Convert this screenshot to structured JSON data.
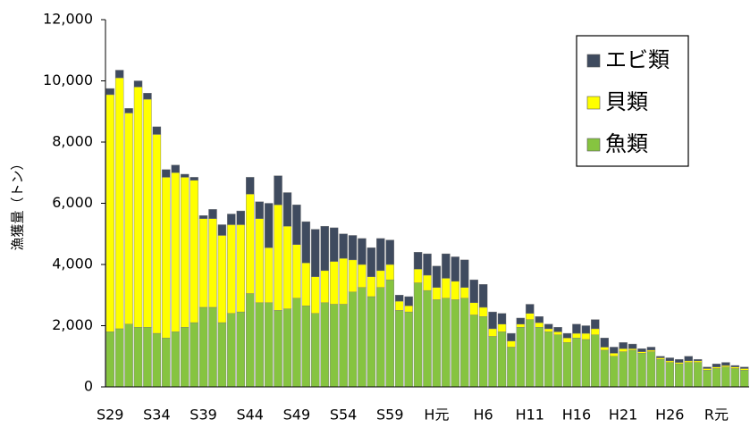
{
  "chart_data": {
    "type": "stacked-bar",
    "y_label": "漁獲量（トン）",
    "categories": [
      "S29",
      null,
      null,
      null,
      null,
      "S34",
      null,
      null,
      null,
      null,
      "S39",
      null,
      null,
      null,
      null,
      "S44",
      null,
      null,
      null,
      null,
      "S49",
      null,
      null,
      null,
      null,
      "S54",
      null,
      null,
      null,
      null,
      "S59",
      null,
      null,
      null,
      null,
      "H元",
      null,
      null,
      null,
      null,
      "H6",
      null,
      null,
      null,
      null,
      "H11",
      null,
      null,
      null,
      null,
      "H16",
      null,
      null,
      null,
      null,
      "H21",
      null,
      null,
      null,
      null,
      "H26",
      null,
      null,
      null,
      null,
      "R元",
      null,
      null,
      null
    ],
    "series": [
      {
        "name": "魚類",
        "color": "#86c440",
        "values": [
          1800,
          1900,
          2050,
          1950,
          1950,
          1750,
          1600,
          1800,
          1950,
          2100,
          2600,
          2600,
          2100,
          2400,
          2450,
          3050,
          2750,
          2750,
          2500,
          2550,
          2900,
          2650,
          2400,
          2750,
          2700,
          2700,
          3100,
          3250,
          2950,
          3250,
          3500,
          2500,
          2450,
          3400,
          3150,
          2850,
          2900,
          2850,
          2900,
          2350,
          2300,
          1650,
          1800,
          1300,
          1950,
          2200,
          1950,
          1800,
          1700,
          1450,
          1600,
          1550,
          1700,
          1200,
          1000,
          1150,
          1200,
          1100,
          1150,
          900,
          800,
          750,
          800,
          800,
          550,
          600,
          650,
          600,
          550
        ]
      },
      {
        "name": "貝類",
        "color": "#ffff00",
        "values": [
          7750,
          8200,
          6900,
          7850,
          7450,
          6500,
          5250,
          5200,
          4900,
          4650,
          2900,
          2900,
          2850,
          2900,
          2850,
          3250,
          2750,
          1800,
          3450,
          2700,
          1750,
          1400,
          1200,
          1050,
          1400,
          1500,
          1050,
          750,
          650,
          550,
          500,
          300,
          200,
          450,
          500,
          400,
          650,
          600,
          350,
          400,
          300,
          250,
          250,
          200,
          100,
          200,
          150,
          100,
          100,
          150,
          150,
          200,
          200,
          100,
          100,
          100,
          50,
          50,
          50,
          50,
          50,
          50,
          50,
          50,
          50,
          50,
          50,
          50,
          50
        ]
      },
      {
        "name": "エビ類",
        "color": "#3f4b5f",
        "values": [
          200,
          250,
          150,
          200,
          200,
          250,
          250,
          250,
          100,
          100,
          100,
          300,
          350,
          350,
          450,
          550,
          550,
          1450,
          950,
          1100,
          1300,
          1350,
          1550,
          1450,
          1100,
          800,
          800,
          850,
          950,
          1050,
          800,
          200,
          300,
          550,
          700,
          700,
          800,
          800,
          900,
          750,
          750,
          550,
          350,
          250,
          200,
          300,
          200,
          150,
          150,
          150,
          300,
          250,
          300,
          300,
          200,
          200,
          150,
          100,
          100,
          50,
          100,
          100,
          150,
          50,
          50,
          100,
          100,
          50,
          50
        ]
      }
    ],
    "ylim": [
      0,
      12000
    ],
    "yticks": [
      0,
      {
        "value": 2000,
        "label": "2,000"
      },
      {
        "value": 4000,
        "label": "4,000"
      },
      {
        "value": 6000,
        "label": "6,000"
      },
      {
        "value": 8000,
        "label": "8,000"
      },
      {
        "value": 10000,
        "label": "10,000"
      },
      {
        "value": 12000,
        "label": "12,000"
      }
    ],
    "legend_position": "upper right"
  }
}
